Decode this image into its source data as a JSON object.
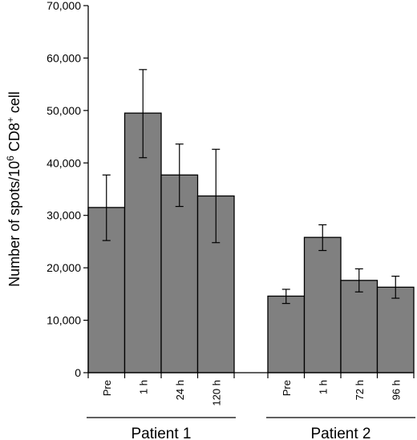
{
  "chart_data": {
    "type": "bar",
    "ylabel_main": "Number of spots/10",
    "ylabel_exp": "6",
    "ylabel_mid": " CD8",
    "ylabel_sup": "+",
    "ylabel_end": " cell",
    "ylim": [
      0,
      70000
    ],
    "yticks": [
      "0",
      "10,000",
      "20,000",
      "30,000",
      "40,000",
      "50,000",
      "60,000",
      "70,000"
    ],
    "ytick_values": [
      0,
      10000,
      20000,
      30000,
      40000,
      50000,
      60000,
      70000
    ],
    "bar_color": "#808080",
    "groups": [
      {
        "name": "Patient 1",
        "categories": [
          "Pre",
          "1 h",
          "24 h",
          "120 h"
        ],
        "values": [
          31500,
          49500,
          37700,
          33700
        ],
        "err_low": [
          25200,
          41000,
          31700,
          24800
        ],
        "err_high": [
          37700,
          57800,
          43600,
          42600
        ]
      },
      {
        "name": "Patient 2",
        "categories": [
          "Pre",
          "1 h",
          "72 h",
          "96 h"
        ],
        "values": [
          14600,
          25800,
          17600,
          16300
        ],
        "err_low": [
          13200,
          23300,
          15400,
          14200
        ],
        "err_high": [
          15900,
          28200,
          19800,
          18400
        ]
      }
    ]
  }
}
